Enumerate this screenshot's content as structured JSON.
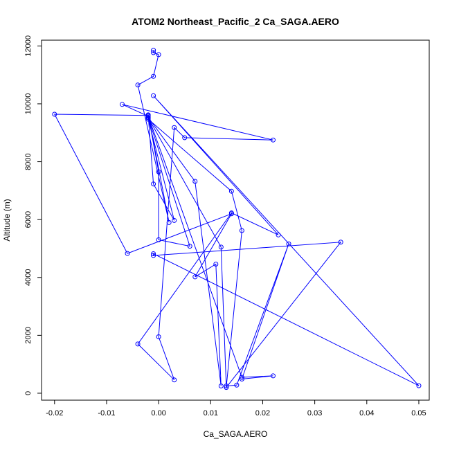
{
  "chart_data": {
    "type": "line",
    "title": "ATOM2 Northeast_Pacific_2 Ca_SAGA.AERO",
    "xlabel": "Ca_SAGA.AERO",
    "ylabel": "Altitude (m)",
    "xlim": [
      -0.0225,
      0.052
    ],
    "ylim": [
      -240,
      12200
    ],
    "x_ticks": [
      -0.02,
      -0.01,
      0.0,
      0.01,
      0.02,
      0.03,
      0.04,
      0.05
    ],
    "x_tick_labels": [
      "-0.02",
      "-0.01",
      "0.00",
      "0.01",
      "0.02",
      "0.03",
      "0.04",
      "0.05"
    ],
    "y_ticks": [
      0,
      2000,
      4000,
      6000,
      8000,
      10000,
      12000
    ],
    "y_tick_labels": [
      "0",
      "2000",
      "4000",
      "6000",
      "8000",
      "10000",
      "12000"
    ],
    "grid": false,
    "color": "#0000ff",
    "series": [
      {
        "points": [
          [
            -0.001,
            11850
          ],
          [
            -0.001,
            11770
          ],
          [
            0.0,
            11700
          ],
          [
            -0.001,
            10950
          ],
          [
            -0.004,
            10650
          ],
          [
            0.002,
            5900
          ],
          [
            -0.002,
            9620
          ],
          [
            0.0,
            7650
          ],
          [
            0.0,
            5300
          ],
          [
            0.006,
            5080
          ],
          [
            -0.002,
            9520
          ],
          [
            0.012,
            5050
          ],
          [
            0.013,
            250
          ],
          [
            0.015,
            280
          ],
          [
            0.025,
            5160
          ],
          [
            0.016,
            490
          ],
          [
            0.022,
            600
          ],
          [
            0.016,
            550
          ],
          [
            -0.002,
            9570
          ],
          [
            -0.007,
            9980
          ],
          [
            0.022,
            8750
          ],
          [
            0.005,
            8830
          ],
          [
            0.003,
            9180
          ],
          [
            0.0,
            1950
          ],
          [
            0.003,
            460
          ],
          [
            -0.004,
            1700
          ],
          [
            0.014,
            6230
          ],
          [
            0.023,
            5470
          ],
          [
            -0.001,
            10280
          ],
          [
            0.05,
            260
          ],
          [
            -0.001,
            4820
          ],
          [
            -0.001,
            4760
          ],
          [
            0.035,
            5220
          ],
          [
            0.013,
            200
          ],
          [
            0.016,
            5620
          ],
          [
            0.014,
            6980
          ],
          [
            -0.002,
            9470
          ],
          [
            0.003,
            5970
          ],
          [
            -0.001,
            7230
          ],
          [
            -0.002,
            9600
          ],
          [
            -0.02,
            9640
          ],
          [
            -0.006,
            4830
          ],
          [
            0.014,
            6200
          ],
          [
            0.007,
            4020
          ],
          [
            0.011,
            4460
          ],
          [
            0.012,
            250
          ],
          [
            0.007,
            7320
          ],
          [
            -0.002,
            9530
          ]
        ]
      }
    ]
  }
}
